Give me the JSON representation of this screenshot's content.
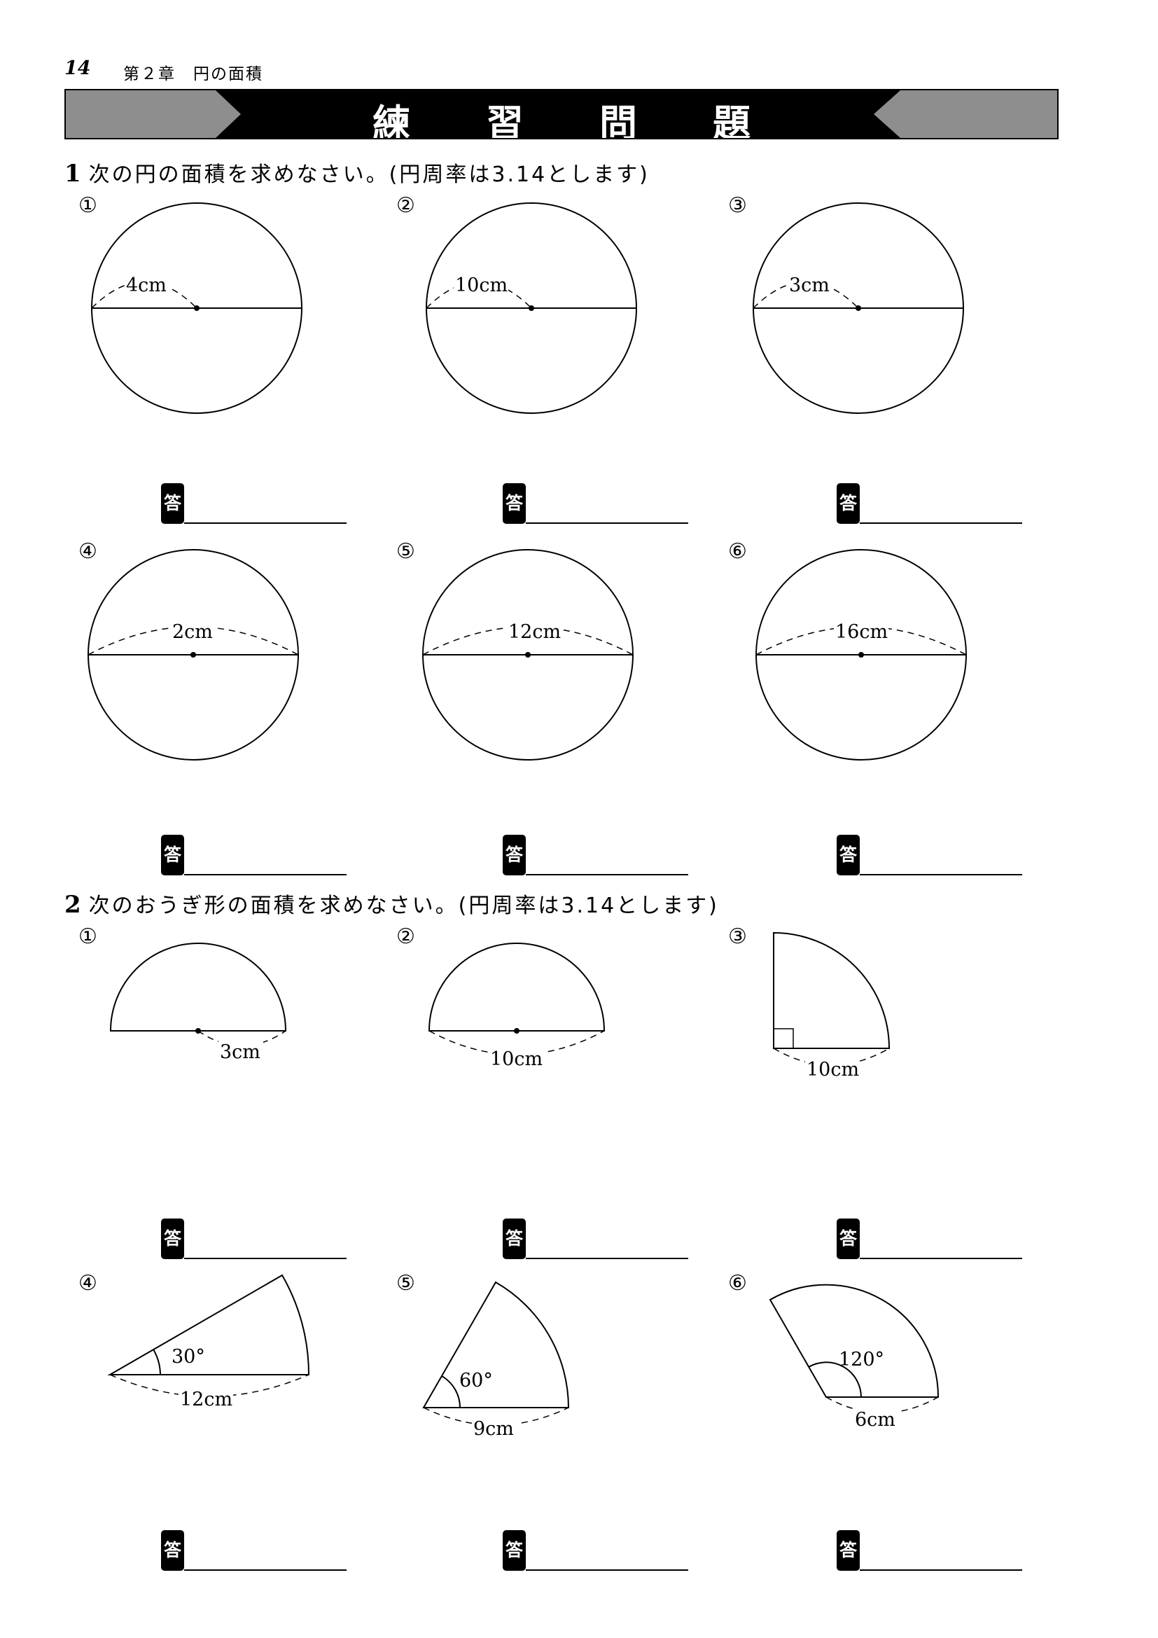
{
  "header": {
    "page_number": "14",
    "chapter": "第２章　円の面積",
    "title": "練習問題"
  },
  "section1": {
    "number": "1",
    "question": "次の円の面積を求めなさい。(円周率は3.14とします)",
    "figures": [
      {
        "label": "①",
        "measure": "4cm"
      },
      {
        "label": "②",
        "measure": "10cm"
      },
      {
        "label": "③",
        "measure": "3cm"
      },
      {
        "label": "④",
        "measure": "2cm"
      },
      {
        "label": "⑤",
        "measure": "12cm"
      },
      {
        "label": "⑥",
        "measure": "16cm"
      }
    ]
  },
  "section2": {
    "number": "2",
    "question": "次のおうぎ形の面積を求めなさい。(円周率は3.14とします)",
    "figures": [
      {
        "label": "①",
        "measure": "3cm"
      },
      {
        "label": "②",
        "measure": "10cm"
      },
      {
        "label": "③",
        "measure": "10cm"
      },
      {
        "label": "④",
        "measure": "12cm",
        "angle": "30°"
      },
      {
        "label": "⑤",
        "measure": "9cm",
        "angle": "60°"
      },
      {
        "label": "⑥",
        "measure": "6cm",
        "angle": "120°"
      }
    ]
  },
  "answer_badge": "答"
}
